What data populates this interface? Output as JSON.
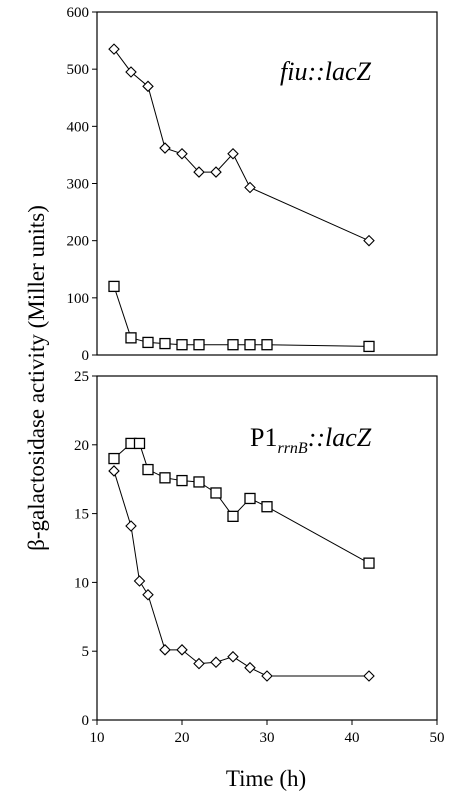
{
  "chart_data": [
    {
      "type": "line",
      "panel_label": {
        "prefix": "",
        "subscript": "",
        "main": "fiu::lacZ"
      },
      "x": [
        12,
        14,
        16,
        18,
        20,
        22,
        24,
        26,
        28,
        30,
        42
      ],
      "series": [
        {
          "marker": "diamond",
          "x": [
            12,
            14,
            16,
            18,
            20,
            22,
            24,
            26,
            28,
            42
          ],
          "values": [
            535,
            495,
            470,
            362,
            352,
            320,
            320,
            352,
            293,
            200
          ]
        },
        {
          "marker": "square",
          "x": [
            12,
            14,
            16,
            18,
            20,
            22,
            26,
            28,
            30,
            42
          ],
          "values": [
            120,
            30,
            22,
            20,
            18,
            18,
            18,
            18,
            18,
            15
          ]
        }
      ],
      "xlim": [
        10,
        50
      ],
      "ylim": [
        0,
        600
      ],
      "yticks": [
        0,
        100,
        200,
        300,
        400,
        500,
        600
      ],
      "xticks": []
    },
    {
      "type": "line",
      "panel_label": {
        "prefix": "P1",
        "subscript": "rrnB",
        "main": "::lacZ"
      },
      "series": [
        {
          "marker": "square",
          "x": [
            12,
            14,
            15,
            16,
            18,
            20,
            22,
            24,
            26,
            28,
            30,
            42
          ],
          "values": [
            19,
            20.1,
            20.1,
            18.2,
            17.6,
            17.4,
            17.3,
            16.5,
            14.8,
            16.1,
            15.5,
            11.4
          ]
        },
        {
          "marker": "diamond",
          "x": [
            12,
            14,
            15,
            16,
            18,
            20,
            22,
            24,
            26,
            28,
            30,
            42
          ],
          "values": [
            18.1,
            14.1,
            10.1,
            9.1,
            5.1,
            5.1,
            4.1,
            4.2,
            4.6,
            3.8,
            3.2,
            3.2
          ]
        }
      ],
      "xlim": [
        10,
        50
      ],
      "ylim": [
        0,
        25
      ],
      "yticks": [
        0,
        5,
        10,
        15,
        20,
        25
      ],
      "xticks": [
        10,
        20,
        30,
        40,
        50
      ]
    }
  ],
  "ylabel": "β-galactosidase activity (Miller units)",
  "xlabel": "Time (h)"
}
